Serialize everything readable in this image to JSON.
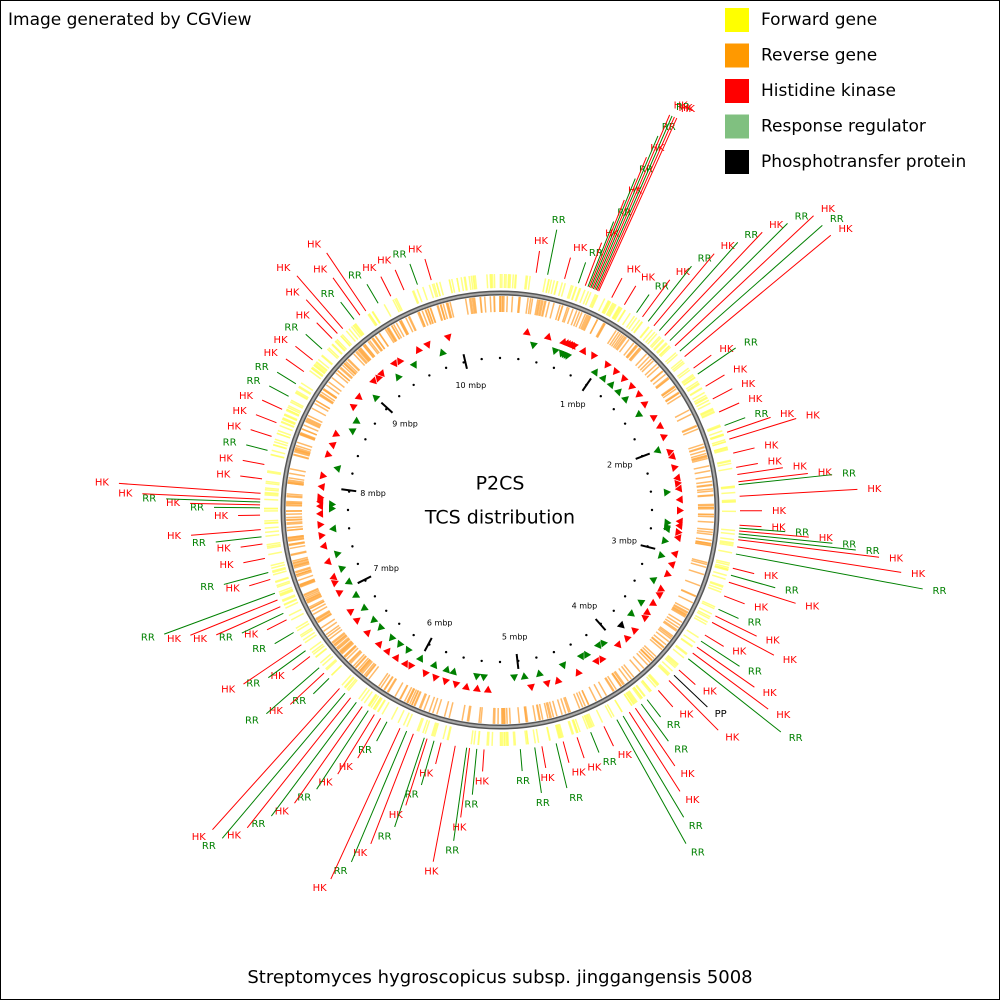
{
  "header": {
    "credit": "Image generated by CGView"
  },
  "legend": {
    "items": [
      {
        "label": "Forward gene",
        "color": "#ffff00"
      },
      {
        "label": "Reverse gene",
        "color": "#ff9900"
      },
      {
        "label": "Histidine kinase",
        "color": "#ff0000"
      },
      {
        "label": "Response regulator",
        "color": "#80c080"
      },
      {
        "label": "Phosphotransfer protein",
        "color": "#000000"
      }
    ]
  },
  "center": {
    "title": "P2CS",
    "subtitle": "TCS distribution"
  },
  "footer": {
    "caption": "Streptomyces hygroscopicus subsp. jinggangensis 5008"
  },
  "map": {
    "xlim": [
      0,
      10.38
    ],
    "ticks": [
      {
        "value": 1,
        "label": "1 mbp"
      },
      {
        "value": 2,
        "label": "2 mbp"
      },
      {
        "value": 3,
        "label": "3 mbp"
      },
      {
        "value": 4,
        "label": "4 mbp"
      },
      {
        "value": 5,
        "label": "5 mbp"
      },
      {
        "value": 6,
        "label": "6 mbp"
      },
      {
        "value": 7,
        "label": "7 mbp"
      },
      {
        "value": 8,
        "label": "8 mbp"
      },
      {
        "value": 9,
        "label": "9 mbp"
      },
      {
        "value": 10,
        "label": "10 mbp"
      }
    ],
    "feature_colors": {
      "HK": "#ff0000",
      "RR": "#008000",
      "PP": "#000000"
    },
    "features": [
      {
        "label": "HK",
        "position": 0.25
      },
      {
        "label": "RR",
        "position": 0.33
      },
      {
        "label": "HK",
        "position": 0.45
      },
      {
        "label": "RR",
        "position": 0.55
      },
      {
        "label": "HK",
        "position": 0.6
      },
      {
        "label": "RR",
        "position": 0.62
      },
      {
        "label": "HK",
        "position": 0.63
      },
      {
        "label": "RR",
        "position": 0.64
      },
      {
        "label": "HK",
        "position": 0.65
      },
      {
        "label": "RR",
        "position": 0.66
      },
      {
        "label": "HK",
        "position": 0.67
      },
      {
        "label": "RR",
        "position": 0.68
      },
      {
        "label": "HK",
        "position": 0.69
      },
      {
        "label": "HK",
        "position": 0.7
      },
      {
        "label": "HK",
        "position": 0.8
      },
      {
        "label": "HK",
        "position": 0.9
      },
      {
        "label": "RR",
        "position": 1.0
      },
      {
        "label": "HK",
        "position": 1.05
      },
      {
        "label": "RR",
        "position": 1.1
      },
      {
        "label": "HK",
        "position": 1.15
      },
      {
        "label": "RR",
        "position": 1.2
      },
      {
        "label": "HK",
        "position": 1.25
      },
      {
        "label": "RR",
        "position": 1.3
      },
      {
        "label": "HK",
        "position": 1.35
      },
      {
        "label": "RR",
        "position": 1.4
      },
      {
        "label": "HK",
        "position": 1.45
      },
      {
        "label": "HK",
        "position": 1.55
      },
      {
        "label": "RR",
        "position": 1.6
      },
      {
        "label": "HK",
        "position": 1.7
      },
      {
        "label": "HK",
        "position": 1.8
      },
      {
        "label": "HK",
        "position": 1.9
      },
      {
        "label": "RR",
        "position": 2.0
      },
      {
        "label": "HK",
        "position": 2.05
      },
      {
        "label": "HK",
        "position": 2.1
      },
      {
        "label": "HK",
        "position": 2.2
      },
      {
        "label": "HK",
        "position": 2.3
      },
      {
        "label": "HK",
        "position": 2.35
      },
      {
        "label": "HK",
        "position": 2.4
      },
      {
        "label": "RR",
        "position": 2.42
      },
      {
        "label": "HK",
        "position": 2.5
      },
      {
        "label": "HK",
        "position": 2.6
      },
      {
        "label": "HK",
        "position": 2.7
      },
      {
        "label": "RR",
        "position": 2.72
      },
      {
        "label": "HK",
        "position": 2.74
      },
      {
        "label": "RR",
        "position": 2.76
      },
      {
        "label": "RR",
        "position": 2.78
      },
      {
        "label": "HK",
        "position": 2.8
      },
      {
        "label": "HK",
        "position": 2.85
      },
      {
        "label": "RR",
        "position": 2.9
      },
      {
        "label": "HK",
        "position": 3.0
      },
      {
        "label": "RR",
        "position": 3.05
      },
      {
        "label": "HK",
        "position": 3.1
      },
      {
        "label": "HK",
        "position": 3.2
      },
      {
        "label": "RR",
        "position": 3.3
      },
      {
        "label": "HK",
        "position": 3.35
      },
      {
        "label": "HK",
        "position": 3.4
      },
      {
        "label": "HK",
        "position": 3.5
      },
      {
        "label": "RR",
        "position": 3.55
      },
      {
        "label": "HK",
        "position": 3.6
      },
      {
        "label": "HK",
        "position": 3.65
      },
      {
        "label": "RR",
        "position": 3.7
      },
      {
        "label": "HK",
        "position": 3.8
      },
      {
        "label": "PP",
        "position": 3.85
      },
      {
        "label": "HK",
        "position": 3.9
      },
      {
        "label": "HK",
        "position": 4.0
      },
      {
        "label": "RR",
        "position": 4.1
      },
      {
        "label": "RR",
        "position": 4.15
      },
      {
        "label": "HK",
        "position": 4.2
      },
      {
        "label": "HK",
        "position": 4.25
      },
      {
        "label": "RR",
        "position": 4.3
      },
      {
        "label": "RR",
        "position": 4.35
      },
      {
        "label": "HK",
        "position": 4.45
      },
      {
        "label": "RR",
        "position": 4.55
      },
      {
        "label": "HK",
        "position": 4.65
      },
      {
        "label": "HK",
        "position": 4.75
      },
      {
        "label": "RR",
        "position": 4.8
      },
      {
        "label": "HK",
        "position": 4.9
      },
      {
        "label": "RR",
        "position": 4.95
      },
      {
        "label": "RR",
        "position": 5.05
      },
      {
        "label": "HK",
        "position": 5.3
      },
      {
        "label": "RR",
        "position": 5.35
      },
      {
        "label": "HK",
        "position": 5.4
      },
      {
        "label": "RR",
        "position": 5.42
      },
      {
        "label": "HK",
        "position": 5.5
      },
      {
        "label": "HK",
        "position": 5.6
      },
      {
        "label": "RR",
        "position": 5.65
      },
      {
        "label": "HK",
        "position": 5.7
      },
      {
        "label": "RR",
        "position": 5.72
      },
      {
        "label": "HK",
        "position": 5.8
      },
      {
        "label": "RR",
        "position": 5.85
      },
      {
        "label": "HK",
        "position": 5.9
      },
      {
        "label": "RR",
        "position": 6.0
      },
      {
        "label": "HK",
        "position": 6.05
      },
      {
        "label": "HK",
        "position": 6.1
      },
      {
        "label": "RR",
        "position": 6.15
      },
      {
        "label": "HK",
        "position": 6.2
      },
      {
        "label": "RR",
        "position": 6.25
      },
      {
        "label": "HK",
        "position": 6.3
      },
      {
        "label": "RR",
        "position": 6.35
      },
      {
        "label": "HK",
        "position": 6.4
      },
      {
        "label": "RR",
        "position": 6.5
      },
      {
        "label": "HK",
        "position": 6.55
      },
      {
        "label": "RR",
        "position": 6.6
      },
      {
        "label": "HK",
        "position": 6.7
      },
      {
        "label": "RR",
        "position": 6.75
      },
      {
        "label": "HK",
        "position": 6.8
      },
      {
        "label": "RR",
        "position": 6.9
      },
      {
        "label": "HK",
        "position": 7.0
      },
      {
        "label": "RR",
        "position": 7.05
      },
      {
        "label": "HK",
        "position": 7.1
      },
      {
        "label": "HK",
        "position": 7.15
      },
      {
        "label": "RR",
        "position": 7.2
      },
      {
        "label": "HK",
        "position": 7.3
      },
      {
        "label": "RR",
        "position": 7.35
      },
      {
        "label": "HK",
        "position": 7.45
      },
      {
        "label": "HK",
        "position": 7.55
      },
      {
        "label": "RR",
        "position": 7.6
      },
      {
        "label": "HK",
        "position": 7.65
      },
      {
        "label": "HK",
        "position": 7.75
      },
      {
        "label": "RR",
        "position": 7.8
      },
      {
        "label": "HK",
        "position": 7.82
      },
      {
        "label": "RR",
        "position": 7.84
      },
      {
        "label": "HK",
        "position": 7.86
      },
      {
        "label": "HK",
        "position": 7.9
      },
      {
        "label": "HK",
        "position": 8.0
      },
      {
        "label": "HK",
        "position": 8.1
      },
      {
        "label": "RR",
        "position": 8.2
      },
      {
        "label": "HK",
        "position": 8.3
      },
      {
        "label": "HK",
        "position": 8.4
      },
      {
        "label": "HK",
        "position": 8.5
      },
      {
        "label": "RR",
        "position": 8.6
      },
      {
        "label": "RR",
        "position": 8.7
      },
      {
        "label": "HK",
        "position": 8.8
      },
      {
        "label": "HK",
        "position": 8.9
      },
      {
        "label": "RR",
        "position": 9.0
      },
      {
        "label": "HK",
        "position": 9.1
      },
      {
        "label": "HK",
        "position": 9.15
      },
      {
        "label": "HK",
        "position": 9.2
      },
      {
        "label": "RR",
        "position": 9.3
      },
      {
        "label": "HK",
        "position": 9.35
      },
      {
        "label": "HK",
        "position": 9.4
      },
      {
        "label": "RR",
        "position": 9.5
      },
      {
        "label": "HK",
        "position": 9.6
      },
      {
        "label": "HK",
        "position": 9.7
      },
      {
        "label": "RR",
        "position": 9.8
      },
      {
        "label": "HK",
        "position": 9.9
      }
    ]
  }
}
